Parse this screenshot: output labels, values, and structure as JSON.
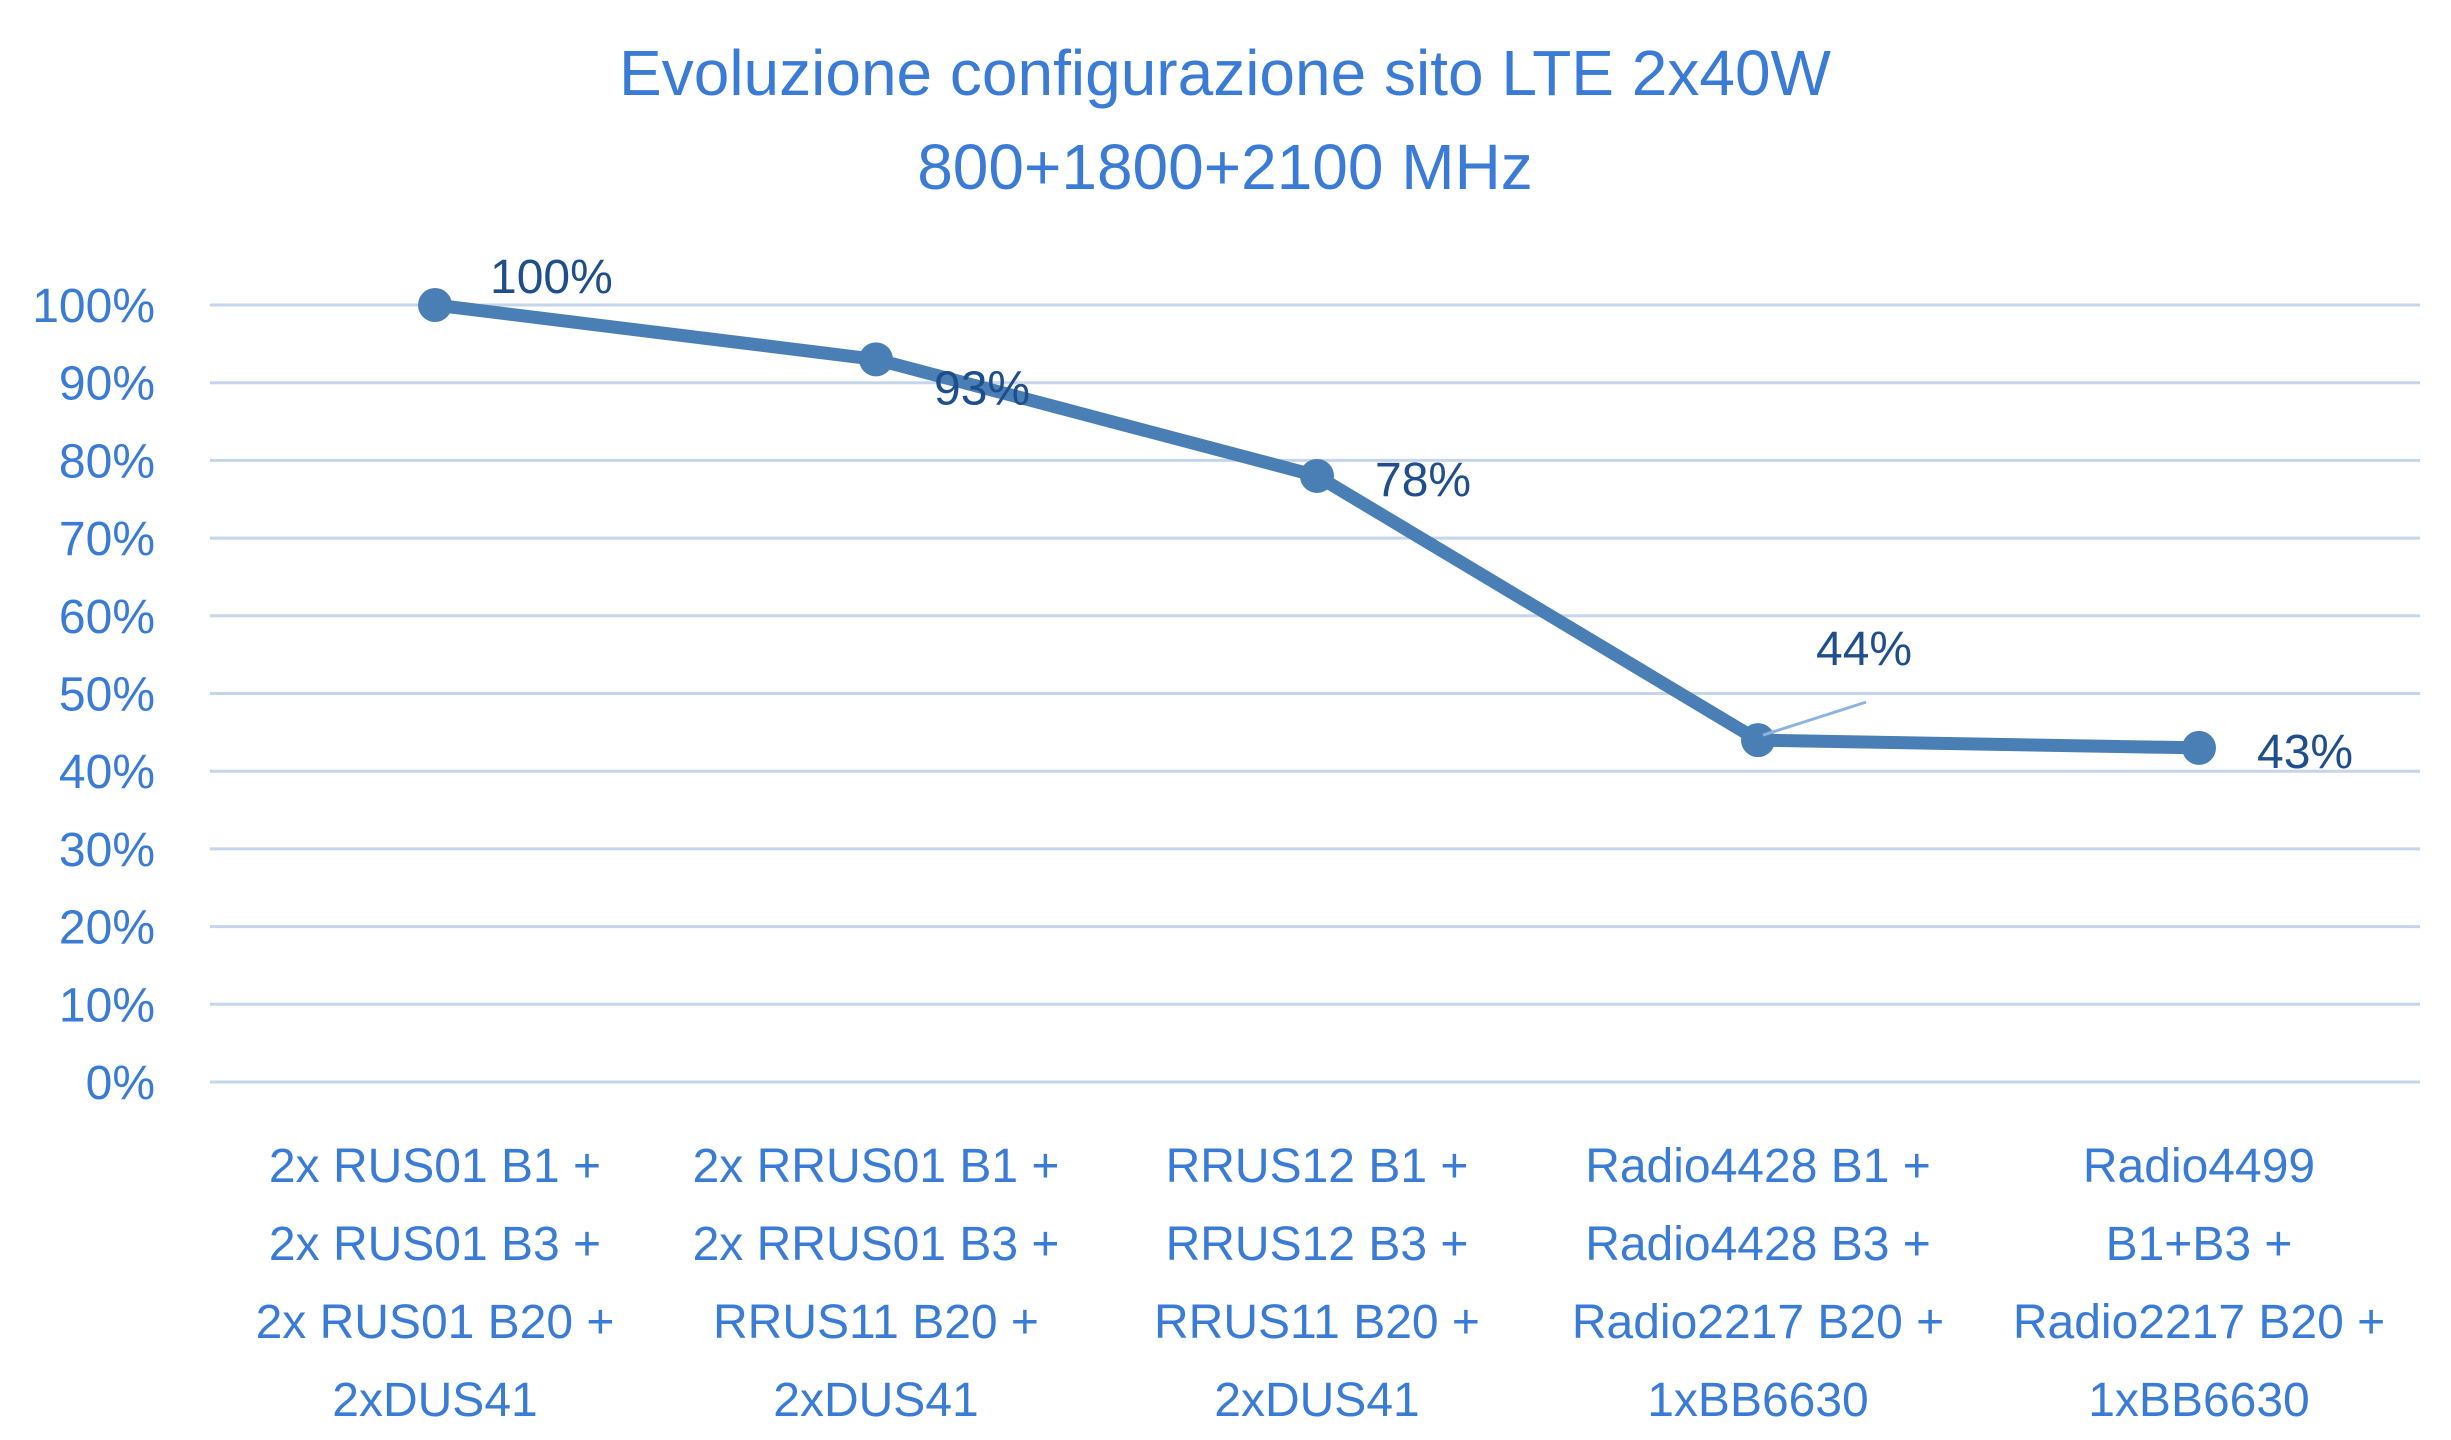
{
  "chart_data": {
    "type": "line",
    "title_lines": [
      "Evoluzione configurazione sito LTE 2x40W",
      "800+1800+2100 MHz"
    ],
    "categories": [
      [
        "2x RUS01 B1 +",
        "2x RUS01 B3 +",
        "2x RUS01 B20 +",
        "2xDUS41"
      ],
      [
        "2x RRUS01 B1 +",
        "2x RRUS01 B3 +",
        "RRUS11 B20 +",
        "2xDUS41"
      ],
      [
        "RRUS12 B1 +",
        "RRUS12 B3 +",
        "RRUS11 B20 +",
        "2xDUS41"
      ],
      [
        "Radio4428 B1 +",
        "Radio4428 B3 +",
        "Radio2217 B20 +",
        "1xBB6630"
      ],
      [
        "Radio4499",
        "B1+B3 +",
        "Radio2217 B20 +",
        "1xBB6630"
      ]
    ],
    "values": [
      100,
      93,
      78,
      44,
      43
    ],
    "data_labels": [
      "100%",
      "93%",
      "78%",
      "44%",
      "43%"
    ],
    "ylim": [
      0,
      100
    ],
    "y_ticks": [
      0,
      10,
      20,
      30,
      40,
      50,
      60,
      70,
      80,
      90,
      100
    ],
    "y_tick_labels": [
      "0%",
      "10%",
      "20%",
      "30%",
      "40%",
      "50%",
      "60%",
      "70%",
      "80%",
      "90%",
      "100%"
    ],
    "grid": true,
    "legend": false,
    "colors": {
      "line": "#4a7fb5",
      "marker": "#4a7fb5",
      "text": "#3a7bd5",
      "data_label": "#1f4e8c",
      "grid": "#c5d5ea",
      "leader_line": "#8fb3e0"
    }
  }
}
